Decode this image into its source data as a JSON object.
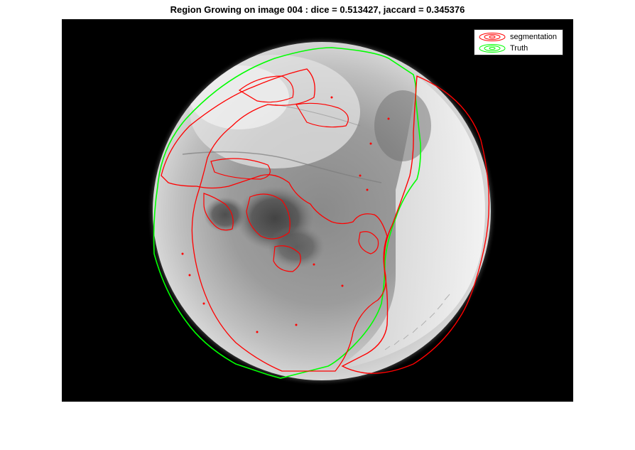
{
  "figure": {
    "title": "Region Growing on image 004 : dice = 0.513427, jaccard = 0.345376"
  },
  "legend": {
    "items": [
      {
        "label": "segmentation",
        "color": "#ff0000"
      },
      {
        "label": "Truth",
        "color": "#00ff00"
      }
    ],
    "placement": "top-right"
  },
  "image": {
    "description_tag": "dermoscopy-grayscale",
    "contours": [
      {
        "name": "segmentation",
        "color": "#ff0000"
      },
      {
        "name": "Truth",
        "color": "#00ff00"
      }
    ]
  },
  "metrics": {
    "image_id": "004",
    "dice": 0.513427,
    "jaccard": 0.345376
  }
}
